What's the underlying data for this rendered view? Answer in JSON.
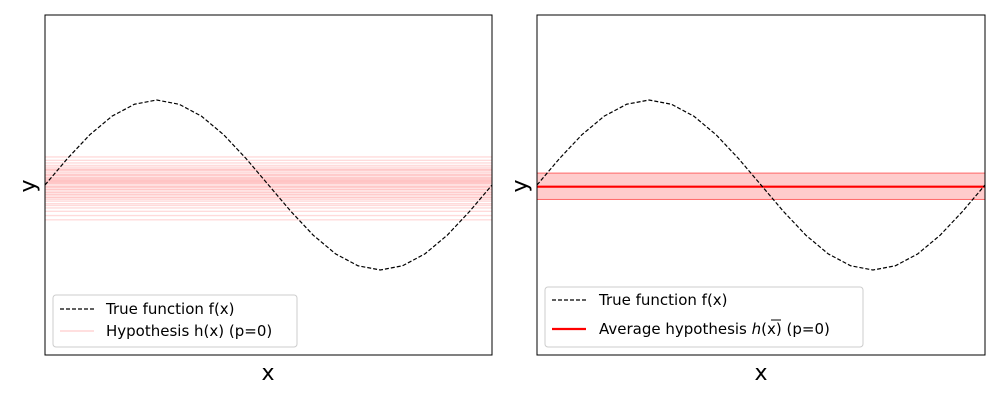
{
  "chart_data": [
    {
      "type": "line",
      "xlabel": "x",
      "ylabel": "y",
      "xlim": [
        -1,
        1
      ],
      "ylim": [
        -2,
        2
      ],
      "x_ticks_shown": false,
      "y_ticks_shown": false,
      "grid": false,
      "true_function": {
        "name": "True function f(x)",
        "style": "dashed",
        "color": "#000000",
        "x": [
          -1.0,
          -0.9,
          -0.8,
          -0.7,
          -0.6,
          -0.5,
          -0.4,
          -0.3,
          -0.2,
          -0.1,
          0.0,
          0.1,
          0.2,
          0.3,
          0.4,
          0.5,
          0.6,
          0.7,
          0.8,
          0.9,
          1.0
        ],
        "y": [
          0.0,
          0.31,
          0.59,
          0.81,
          0.95,
          1.0,
          0.95,
          0.81,
          0.59,
          0.31,
          0.0,
          -0.31,
          -0.59,
          -0.81,
          -0.95,
          -1.0,
          -0.95,
          -0.81,
          -0.59,
          -0.31,
          0.0
        ]
      },
      "hypotheses": {
        "name": "Hypothesis h(x) (p=0)",
        "color": "#ff0000",
        "constant_values": [
          0.26,
          -0.41,
          0.07,
          -0.12,
          0.19,
          -0.03,
          0.33,
          -0.22,
          0.11,
          -0.08,
          0.02,
          -0.17,
          0.23,
          0.05,
          -0.31,
          0.15,
          -0.05,
          0.09,
          -0.27,
          0.13,
          0.01,
          -0.14,
          0.29,
          -0.09,
          0.04,
          -0.19,
          0.17,
          -0.01,
          0.08,
          -0.24,
          0.21,
          -0.06,
          0.12,
          -0.36,
          0.03,
          -0.11,
          0.18,
          -0.02,
          0.06,
          -0.15
        ]
      },
      "legend": {
        "placement": "lower-left",
        "entries": [
          "True function f(x)",
          "Hypothesis h(x) (p=0)"
        ]
      }
    },
    {
      "type": "line",
      "xlabel": "x",
      "ylabel": "y",
      "xlim": [
        -1,
        1
      ],
      "ylim": [
        -2,
        2
      ],
      "x_ticks_shown": false,
      "y_ticks_shown": false,
      "grid": false,
      "true_function": {
        "name": "True function f(x)",
        "style": "dashed",
        "color": "#000000",
        "x": [
          -1.0,
          -0.9,
          -0.8,
          -0.7,
          -0.6,
          -0.5,
          -0.4,
          -0.3,
          -0.2,
          -0.1,
          0.0,
          0.1,
          0.2,
          0.3,
          0.4,
          0.5,
          0.6,
          0.7,
          0.8,
          0.9,
          1.0
        ],
        "y": [
          0.0,
          0.31,
          0.59,
          0.81,
          0.95,
          1.0,
          0.95,
          0.81,
          0.59,
          0.31,
          0.0,
          -0.31,
          -0.59,
          -0.81,
          -0.95,
          -1.0,
          -0.95,
          -0.81,
          -0.59,
          -0.31,
          0.0
        ]
      },
      "average_hypothesis": {
        "name_prefix": "Average hypothesis ",
        "name_symbol": "h",
        "name_arg": "(x)",
        "name_suffix": " (p=0)",
        "value": -0.02,
        "band_lower": -0.17,
        "band_upper": 0.14,
        "line_color": "#ff0000",
        "band_color": "#ffcccc"
      },
      "legend": {
        "placement": "lower-left",
        "entries": [
          "True function f(x)",
          "Average hypothesis h(x) (p=0)"
        ]
      }
    }
  ]
}
